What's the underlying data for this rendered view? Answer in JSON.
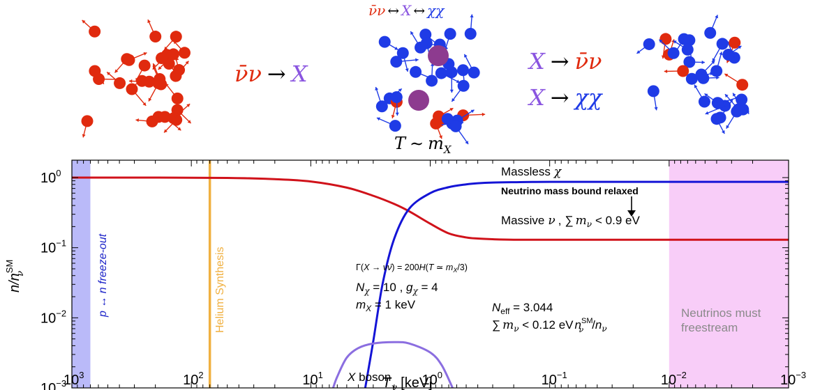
{
  "illustration": {
    "panel1": {
      "colors": {
        "nu": "#e02a0e"
      }
    },
    "reaction1": {
      "lhs": "ν̄ν",
      "arrow": "→",
      "rhs": "X"
    },
    "panel2": {
      "top_eq": {
        "a": "ν̄ν",
        "arr1": "↔",
        "b": "X",
        "arr2": "↔",
        "c": "χχ"
      },
      "temp": {
        "T": "T",
        "sim": "∼",
        "m": "m",
        "sub": "X"
      }
    },
    "reaction2": {
      "lhs": "X",
      "arrow": "→",
      "rhs": "ν̄ν"
    },
    "reaction3": {
      "lhs": "X",
      "arrow": "→",
      "rhs": "χχ"
    },
    "colors": {
      "nu": "#e02a0e",
      "chi": "#1f3be6",
      "X": "#8d3b8f",
      "X_text": "#8a55e0"
    }
  },
  "chart_data": {
    "type": "line",
    "x_scale": "log",
    "x_reversed": true,
    "y_scale": "log",
    "xlim": [
      1000,
      0.001
    ],
    "ylim": [
      0.001,
      2
    ],
    "xlabel": {
      "main": "T",
      "sub": "γ",
      "unit": " [keV]"
    },
    "ylabel": {
      "n": "n/n",
      "sub": "ν",
      "sup": "SM"
    },
    "xticks": [
      {
        "value": 1000,
        "base": "10",
        "exp": "3"
      },
      {
        "value": 100,
        "base": "10",
        "exp": "2"
      },
      {
        "value": 10,
        "base": "10",
        "exp": "1"
      },
      {
        "value": 1,
        "base": "10",
        "exp": "0"
      },
      {
        "value": 0.1,
        "base": "10",
        "exp": "−1"
      },
      {
        "value": 0.01,
        "base": "10",
        "exp": "−2"
      },
      {
        "value": 0.001,
        "base": "10",
        "exp": "−3"
      }
    ],
    "yticks": [
      {
        "value": 1,
        "base": "10",
        "exp": "0"
      },
      {
        "value": 0.1,
        "base": "10",
        "exp": "−1"
      },
      {
        "value": 0.01,
        "base": "10",
        "exp": "−2"
      },
      {
        "value": 0.001,
        "base": "10",
        "exp": "−3"
      }
    ],
    "series": [
      {
        "color": "#d0121a",
        "x": [
          1000,
          200,
          50,
          20,
          10,
          5,
          3,
          2,
          1.5,
          1,
          0.7,
          0.5,
          0.4,
          0.3,
          0.2,
          0.1,
          0.01,
          0.001
        ],
        "y": [
          1.0,
          1.0,
          0.99,
          0.95,
          0.88,
          0.72,
          0.55,
          0.42,
          0.33,
          0.22,
          0.16,
          0.14,
          0.135,
          0.132,
          0.13,
          0.13,
          0.13,
          0.13
        ]
      },
      {
        "color": "#1414d6",
        "x": [
          3.5,
          3,
          2.5,
          2,
          1.5,
          1,
          0.7,
          0.5,
          0.4,
          0.3,
          0.2,
          0.1,
          0.01,
          0.001
        ],
        "y": [
          0.001,
          0.0046,
          0.031,
          0.135,
          0.36,
          0.6,
          0.73,
          0.8,
          0.83,
          0.85,
          0.86,
          0.87,
          0.87,
          0.87
        ]
      },
      {
        "color": "#8b6ee0",
        "x": [
          6.5,
          6,
          5,
          4,
          3,
          2,
          1.5,
          1,
          0.8,
          0.65
        ],
        "y": [
          0.001,
          0.00145,
          0.0027,
          0.0037,
          0.0043,
          0.0045,
          0.0043,
          0.0032,
          0.0021,
          0.001
        ]
      }
    ],
    "bands": [
      {
        "x_from": 1000,
        "x_to": 700,
        "color": "#5b5bf0",
        "opacity": 0.42,
        "label": "p ↔ n freeze-out",
        "label_color": "#1b22c8"
      },
      {
        "x_from": 0.01,
        "x_to": 0.001,
        "color": "#f090f0",
        "opacity": 0.45,
        "label": [
          "Neutrinos must",
          "freestream"
        ],
        "label_color": "#8a8a8a"
      }
    ],
    "vline": {
      "x": 70,
      "color": "#f0b040",
      "label": "Helium Synthesis"
    },
    "annotations": {
      "massless": {
        "text": "Massless",
        "sym": "χ"
      },
      "relaxed": {
        "text": "Neutrino mass bound relaxed"
      },
      "massive": {
        "text": "Massive",
        "sym": "ν",
        "sum": "∑",
        "m": "m",
        "sub": "ν",
        "rel": "< 0.9 eV"
      },
      "gamma_line": {
        "Gamma": "Γ(",
        "X": "X",
        "arrow": " → ",
        "nunu": "νν̄",
        "eq": ") = 200",
        "H": "H",
        "paren": "(",
        "T": "T",
        "sim": " ≃ ",
        "m": "m",
        "sub": "X",
        "div": "/3)"
      },
      "N_line": {
        "N": "N",
        "sub": "χ",
        "eq": " = 10 , ",
        "g": "g",
        "gsub": "χ",
        "geq": " = 4"
      },
      "m_line": {
        "m": "m",
        "sub": "X",
        "eq": " = 1 keV"
      },
      "neff": {
        "N": "N",
        "sub": "eff",
        "eq": " = 3.044"
      },
      "sum_line": {
        "sum": "∑",
        "m": "m",
        "sub": "ν",
        "rel": " < 0.12 eV",
        "n": "n",
        "nsub": "ν",
        "nsup": "SM",
        "div": "/",
        "n2": "n",
        "n2sub": "ν"
      },
      "xboson": {
        "X": "X",
        "text": " boson"
      }
    }
  }
}
